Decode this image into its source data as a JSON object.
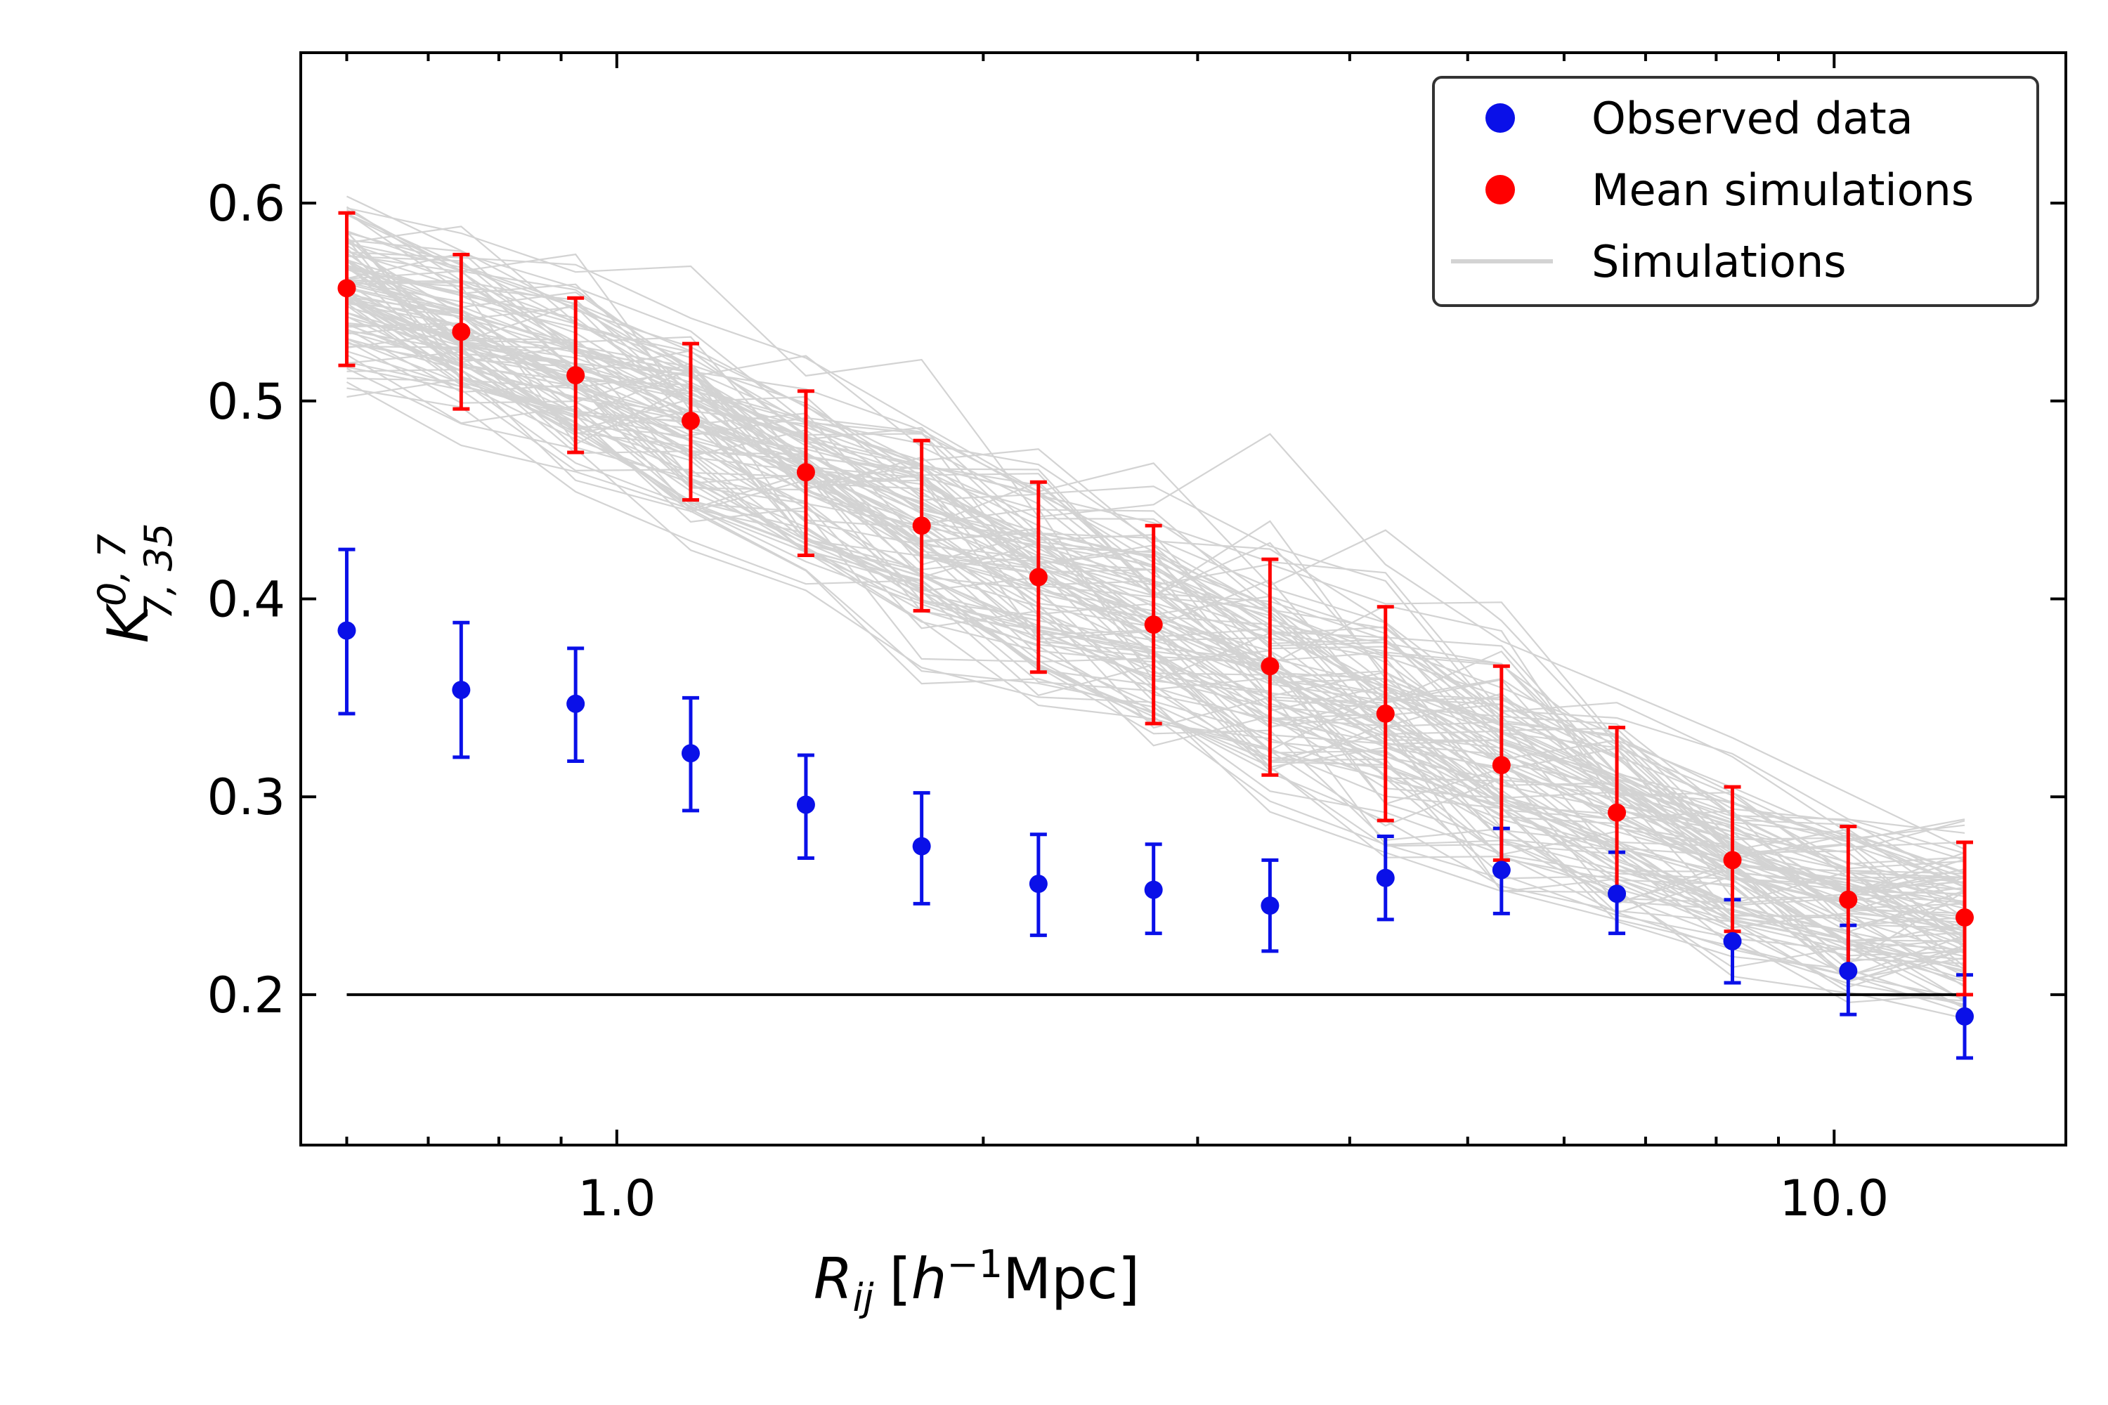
{
  "chart_data": {
    "type": "scatter",
    "xscale": "log",
    "xlabel": {
      "main": "R",
      "sub": "ij",
      "bracket_open": "[",
      "h": "h",
      "exp": "−1",
      "unit": "Mpc]"
    },
    "ylabel": {
      "main": "K",
      "sup": "0, 7",
      "sub": "7, 35"
    },
    "xlim": [
      0.55,
      15.5
    ],
    "ylim": [
      0.124,
      0.676
    ],
    "xticks": [
      {
        "value": 1.0,
        "label": "1.0"
      },
      {
        "value": 10.0,
        "label": "10.0"
      }
    ],
    "yticks": [
      {
        "value": 0.2,
        "label": "0.2"
      },
      {
        "value": 0.3,
        "label": "0.3"
      },
      {
        "value": 0.4,
        "label": "0.4"
      },
      {
        "value": 0.5,
        "label": "0.5"
      },
      {
        "value": 0.6,
        "label": "0.6"
      }
    ],
    "x": [
      0.6,
      0.745,
      0.925,
      1.15,
      1.43,
      1.78,
      2.22,
      2.76,
      3.44,
      4.28,
      5.33,
      6.63,
      8.25,
      10.27,
      12.8
    ],
    "series": [
      {
        "name": "Observed data",
        "color": "#0a10e8",
        "values": [
          0.384,
          0.354,
          0.347,
          0.322,
          0.296,
          0.275,
          0.256,
          0.253,
          0.245,
          0.259,
          0.263,
          0.251,
          0.227,
          0.212,
          0.189
        ],
        "err_low": [
          0.342,
          0.32,
          0.318,
          0.293,
          0.269,
          0.246,
          0.23,
          0.231,
          0.222,
          0.238,
          0.241,
          0.231,
          0.206,
          0.19,
          0.168
        ],
        "err_high": [
          0.425,
          0.388,
          0.375,
          0.35,
          0.321,
          0.302,
          0.281,
          0.276,
          0.268,
          0.28,
          0.284,
          0.272,
          0.248,
          0.235,
          0.21
        ]
      },
      {
        "name": "Mean simulations",
        "color": "#ff0000",
        "values": [
          0.557,
          0.535,
          0.513,
          0.49,
          0.464,
          0.437,
          0.411,
          0.387,
          0.366,
          0.342,
          0.316,
          0.292,
          0.268,
          0.248,
          0.239
        ],
        "err_low": [
          0.518,
          0.496,
          0.474,
          0.45,
          0.422,
          0.394,
          0.363,
          0.337,
          0.311,
          0.288,
          0.268,
          0.25,
          0.232,
          0.212,
          0.2
        ],
        "err_high": [
          0.595,
          0.574,
          0.552,
          0.529,
          0.505,
          0.48,
          0.459,
          0.437,
          0.42,
          0.396,
          0.366,
          0.335,
          0.305,
          0.285,
          0.277
        ]
      }
    ],
    "simulations": {
      "name": "Simulations",
      "color": "#d3d3d3",
      "count": 100,
      "mean": [
        0.557,
        0.535,
        0.513,
        0.49,
        0.464,
        0.437,
        0.411,
        0.387,
        0.366,
        0.342,
        0.316,
        0.292,
        0.268,
        0.248,
        0.239
      ],
      "spread": [
        0.039,
        0.039,
        0.039,
        0.04,
        0.041,
        0.043,
        0.048,
        0.05,
        0.054,
        0.054,
        0.049,
        0.042,
        0.036,
        0.036,
        0.038
      ]
    },
    "reference_line": {
      "y": 0.2,
      "x_from": 0.6,
      "x_to": 12.8,
      "color": "#000000"
    },
    "legend": {
      "position": "top-right",
      "entries": [
        {
          "label": "Observed data",
          "marker": "dot",
          "color": "#0a10e8"
        },
        {
          "label": "Mean simulations",
          "marker": "dot",
          "color": "#ff0000"
        },
        {
          "label": "Simulations",
          "marker": "line",
          "color": "#d3d3d3"
        }
      ]
    }
  }
}
